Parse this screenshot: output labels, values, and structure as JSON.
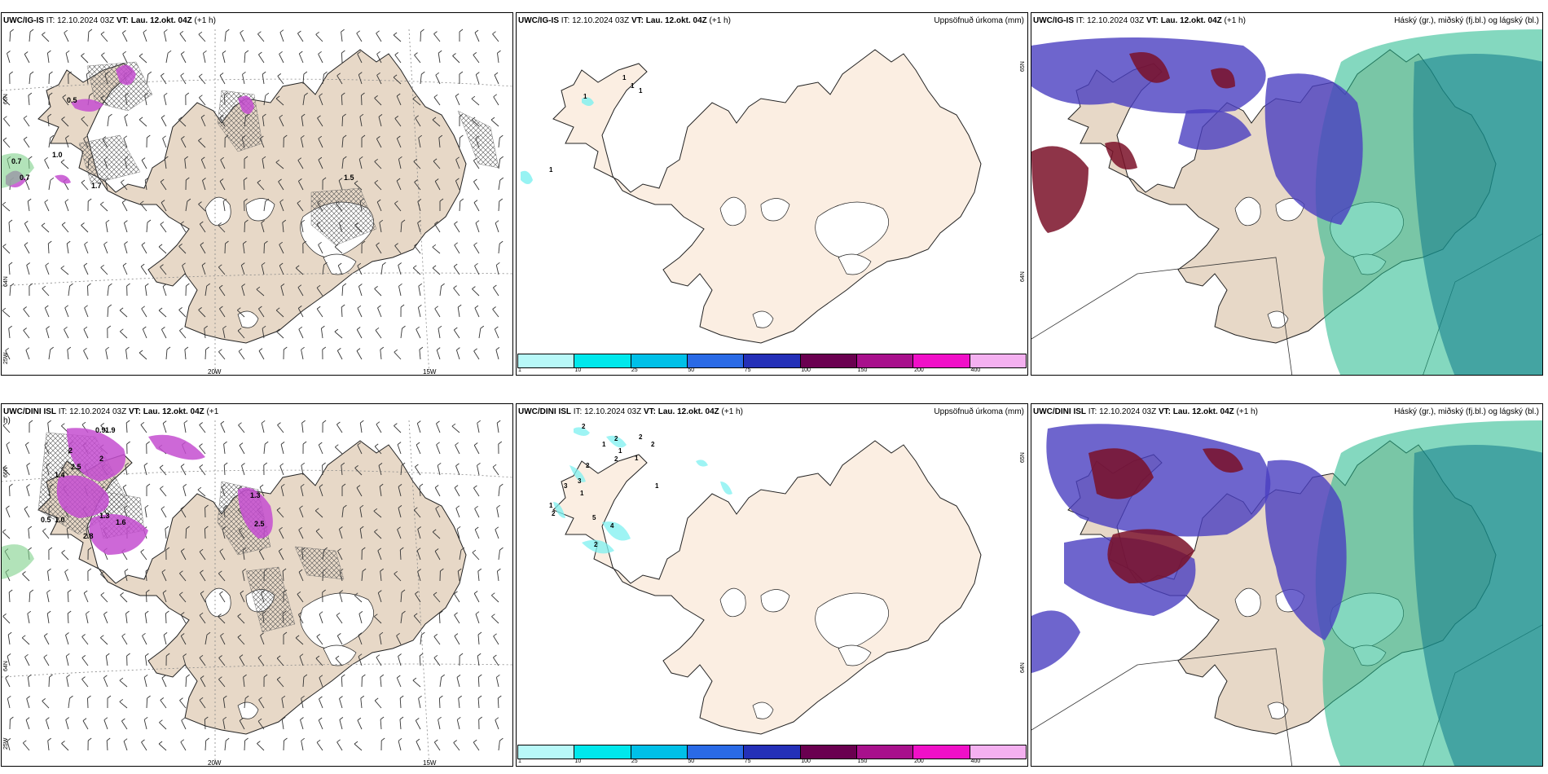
{
  "panels": [
    {
      "id": "ig-is-wind",
      "title_model": "UWC/IG-IS",
      "title_it": " IT: 12.10.2024 03Z ",
      "title_vt_label": "VT: Lau. 12.okt. 04Z",
      "title_lead": " (+1 h)",
      "right_title": "",
      "lat_labels": [
        "66N",
        "64N",
        "25W"
      ],
      "lon_labels": [
        "20W",
        "15W"
      ],
      "value_labels": [
        "0.7",
        "1.0",
        "0.7",
        "1.7",
        "0.5",
        "1.5"
      ]
    },
    {
      "id": "ig-is-precip",
      "title_model": "UWC/IG-IS",
      "title_it": " IT: 12.10.2024 03Z ",
      "title_vt_label": "VT: Lau. 12.okt. 04Z",
      "title_lead": " (+1 h)",
      "right_title": "Uppsöfnuð úrkoma (mm)",
      "lat_labels": [
        "65N",
        "64N"
      ],
      "value_labels": [
        "1",
        "1",
        "1",
        "1",
        "1"
      ]
    },
    {
      "id": "ig-is-cloud",
      "title_model": "UWC/IG-IS",
      "title_it": " IT: 12.10.2024 03Z ",
      "title_vt_label": "VT: Lau. 12.okt. 04Z",
      "title_lead": " (+1 h)",
      "right_title": "Háský (gr.), miðský (fj.bl.) og lágský (bl.)"
    },
    {
      "id": "dini-wind",
      "title_model": "UWC/DINI ISL",
      "title_it": " IT: 12.10.2024 03Z ",
      "title_vt_label": "VT: Lau. 12.okt. 04Z",
      "title_lead": " (+1",
      "title_wrap": "h)",
      "right_title": "",
      "lat_labels": [
        "66N",
        "64N",
        "25W"
      ],
      "lon_labels": [
        "20W",
        "15W"
      ],
      "value_labels": [
        "0.9",
        "1.9",
        "2",
        "2",
        "2.5",
        "1.4",
        "0.5",
        "1.0",
        "1.3",
        "1.6",
        "2.8",
        "1.3",
        "2.5"
      ]
    },
    {
      "id": "dini-precip",
      "title_model": "UWC/DINI ISL",
      "title_it": " IT: 12.10.2024 03Z ",
      "title_vt_label": "VT: Lau. 12.okt. 04Z",
      "title_lead": " (+1 h)",
      "right_title": "Uppsöfnuð úrkoma (mm)",
      "lat_labels": [
        "65N",
        "64N"
      ],
      "value_labels": [
        "2",
        "2",
        "1",
        "2",
        "2",
        "3",
        "3",
        "1",
        "2",
        "2",
        "1",
        "1",
        "1",
        "2",
        "5",
        "4",
        "2",
        "1"
      ]
    },
    {
      "id": "dini-cloud",
      "title_model": "UWC/DINI ISL",
      "title_it": " IT: 12.10.2024 03Z ",
      "title_vt_label": "VT: Lau. 12.okt. 04Z",
      "title_lead": " (+1 h)",
      "right_title": "Háský (gr.), miðský (fj.bl.) og lágský (bl.)"
    }
  ],
  "colorbar": {
    "ticks": [
      "1",
      "10",
      "25",
      "50",
      "75",
      "100",
      "150",
      "200",
      "400"
    ],
    "colors": [
      "#b8f8f8",
      "#00e8ec",
      "#00c0e8",
      "#2a6ae6",
      "#2430b8",
      "#6a0050",
      "#a8108c",
      "#f010c8",
      "#f4b0f0"
    ]
  },
  "colors": {
    "land": "#e7d8c7",
    "land_precip": "#fbeee2",
    "coast": "#222222",
    "grid": "#888888",
    "icing_magenta": "#c44ed0",
    "cloud_low": "#4a3fc0",
    "cloud_mid": "#7a1028",
    "cloud_high": "#1fb88a"
  }
}
